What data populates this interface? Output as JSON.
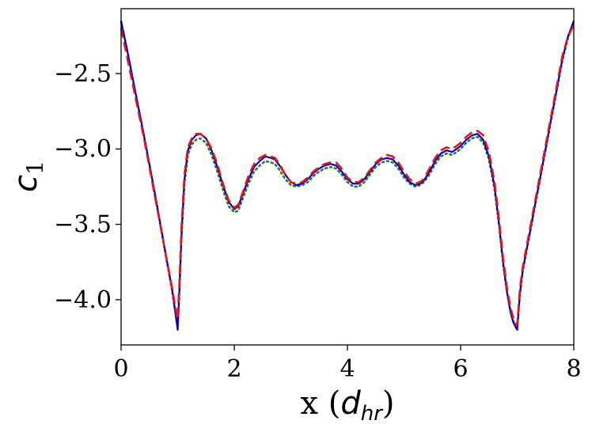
{
  "chart_data": {
    "type": "line",
    "xlabel": {
      "main": "x (",
      "italic": "d",
      "sub": "hr",
      "close": ")"
    },
    "ylabel": {
      "italic": "c",
      "sub": "1"
    },
    "xlim": [
      0,
      8
    ],
    "ylim": [
      -4.3,
      -2.07
    ],
    "xticks": [
      0,
      2,
      4,
      6,
      8
    ],
    "xtick_labels": [
      "0",
      "2",
      "4",
      "6",
      "8"
    ],
    "yticks": [
      -4.0,
      -3.5,
      -3.0,
      -2.5
    ],
    "ytick_labels": [
      "−4.0",
      "−3.5",
      "−3.0",
      "−2.5"
    ],
    "grid": false,
    "series": [
      {
        "color": "#0000cc",
        "style": "solid",
        "x": [
          0,
          0.1,
          0.2,
          0.3,
          0.4,
          0.5,
          0.6,
          0.7,
          0.8,
          0.9,
          0.95,
          1.0,
          1.03,
          1.07,
          1.12,
          1.18,
          1.25,
          1.32,
          1.4,
          1.5,
          1.6,
          1.7,
          1.8,
          1.9,
          2.0,
          2.07,
          2.15,
          2.25,
          2.35,
          2.45,
          2.55,
          2.65,
          2.72,
          2.8,
          2.9,
          3.0,
          3.1,
          3.2,
          3.3,
          3.4,
          3.5,
          3.6,
          3.7,
          3.8,
          3.9,
          4.0,
          4.1,
          4.2,
          4.3,
          4.4,
          4.5,
          4.6,
          4.7,
          4.8,
          4.9,
          5.0,
          5.1,
          5.2,
          5.28,
          5.35,
          5.45,
          5.55,
          5.65,
          5.75,
          5.85,
          5.93,
          6.0,
          6.1,
          6.2,
          6.3,
          6.4,
          6.5,
          6.6,
          6.68,
          6.75,
          6.82,
          6.88,
          6.93,
          6.97,
          7.0,
          7.05,
          7.1,
          7.2,
          7.3,
          7.4,
          7.5,
          7.6,
          7.7,
          7.8,
          7.9,
          8.0
        ],
        "values": [
          -2.15,
          -2.33,
          -2.52,
          -2.71,
          -2.9,
          -3.1,
          -3.3,
          -3.51,
          -3.72,
          -3.93,
          -4.06,
          -4.2,
          -3.95,
          -3.55,
          -3.2,
          -3.01,
          -2.94,
          -2.91,
          -2.9,
          -2.93,
          -3.01,
          -3.12,
          -3.24,
          -3.35,
          -3.4,
          -3.38,
          -3.3,
          -3.2,
          -3.12,
          -3.08,
          -3.05,
          -3.06,
          -3.07,
          -3.11,
          -3.17,
          -3.22,
          -3.24,
          -3.23,
          -3.2,
          -3.16,
          -3.13,
          -3.11,
          -3.1,
          -3.11,
          -3.15,
          -3.2,
          -3.23,
          -3.23,
          -3.2,
          -3.15,
          -3.1,
          -3.07,
          -3.06,
          -3.07,
          -3.11,
          -3.17,
          -3.22,
          -3.24,
          -3.23,
          -3.21,
          -3.15,
          -3.08,
          -3.03,
          -3.01,
          -3.02,
          -3.0,
          -2.98,
          -2.94,
          -2.91,
          -2.9,
          -2.94,
          -3.05,
          -3.25,
          -3.5,
          -3.75,
          -3.95,
          -4.08,
          -4.15,
          -4.18,
          -4.2,
          -3.95,
          -3.8,
          -3.6,
          -3.4,
          -3.2,
          -3.0,
          -2.8,
          -2.6,
          -2.4,
          -2.25,
          -2.15
        ]
      },
      {
        "color": "#2e7d1f",
        "style": "dotted",
        "x": [
          0,
          0.1,
          0.2,
          0.3,
          0.4,
          0.5,
          0.6,
          0.7,
          0.8,
          0.9,
          0.95,
          1.0,
          1.03,
          1.07,
          1.12,
          1.18,
          1.25,
          1.32,
          1.4,
          1.5,
          1.6,
          1.7,
          1.8,
          1.9,
          2.0,
          2.07,
          2.15,
          2.25,
          2.35,
          2.45,
          2.55,
          2.65,
          2.72,
          2.8,
          2.9,
          3.0,
          3.1,
          3.2,
          3.3,
          3.4,
          3.5,
          3.6,
          3.7,
          3.8,
          3.9,
          4.0,
          4.1,
          4.2,
          4.3,
          4.4,
          4.5,
          4.6,
          4.7,
          4.8,
          4.9,
          5.0,
          5.1,
          5.2,
          5.28,
          5.35,
          5.45,
          5.55,
          5.65,
          5.75,
          5.85,
          5.93,
          6.0,
          6.1,
          6.2,
          6.3,
          6.4,
          6.5,
          6.6,
          6.68,
          6.75,
          6.82,
          6.88,
          6.93,
          6.97,
          7.0,
          7.05,
          7.1,
          7.2,
          7.3,
          7.4,
          7.5,
          7.6,
          7.7,
          7.8,
          7.9,
          8.0
        ],
        "values": [
          -2.16,
          -2.34,
          -2.53,
          -2.72,
          -2.91,
          -3.11,
          -3.31,
          -3.52,
          -3.73,
          -3.94,
          -4.06,
          -4.18,
          -3.96,
          -3.57,
          -3.23,
          -3.04,
          -2.97,
          -2.94,
          -2.93,
          -2.96,
          -3.04,
          -3.15,
          -3.27,
          -3.38,
          -3.42,
          -3.41,
          -3.33,
          -3.23,
          -3.15,
          -3.11,
          -3.08,
          -3.09,
          -3.1,
          -3.14,
          -3.2,
          -3.24,
          -3.25,
          -3.24,
          -3.22,
          -3.18,
          -3.15,
          -3.13,
          -3.12,
          -3.13,
          -3.17,
          -3.22,
          -3.25,
          -3.25,
          -3.22,
          -3.17,
          -3.12,
          -3.09,
          -3.08,
          -3.09,
          -3.13,
          -3.19,
          -3.23,
          -3.25,
          -3.24,
          -3.22,
          -3.17,
          -3.1,
          -3.05,
          -3.03,
          -3.04,
          -3.02,
          -3.0,
          -2.96,
          -2.93,
          -2.92,
          -2.96,
          -3.07,
          -3.27,
          -3.51,
          -3.76,
          -3.95,
          -4.07,
          -4.14,
          -4.17,
          -4.18,
          -3.96,
          -3.81,
          -3.61,
          -3.41,
          -3.21,
          -3.01,
          -2.81,
          -2.61,
          -2.41,
          -2.26,
          -2.16
        ]
      },
      {
        "color": "#e8141a",
        "style": "dashed",
        "x": [
          0,
          0.1,
          0.2,
          0.3,
          0.4,
          0.5,
          0.6,
          0.7,
          0.8,
          0.9,
          0.95,
          1.0,
          1.03,
          1.07,
          1.12,
          1.18,
          1.25,
          1.32,
          1.4,
          1.5,
          1.6,
          1.7,
          1.8,
          1.9,
          2.0,
          2.07,
          2.15,
          2.25,
          2.35,
          2.45,
          2.55,
          2.65,
          2.72,
          2.8,
          2.9,
          3.0,
          3.1,
          3.2,
          3.3,
          3.4,
          3.5,
          3.6,
          3.7,
          3.8,
          3.9,
          4.0,
          4.1,
          4.2,
          4.3,
          4.4,
          4.5,
          4.6,
          4.7,
          4.8,
          4.9,
          5.0,
          5.1,
          5.2,
          5.28,
          5.35,
          5.45,
          5.55,
          5.65,
          5.75,
          5.85,
          5.93,
          6.0,
          6.1,
          6.2,
          6.3,
          6.4,
          6.5,
          6.6,
          6.68,
          6.75,
          6.82,
          6.88,
          6.93,
          6.97,
          7.0,
          7.05,
          7.1,
          7.2,
          7.3,
          7.4,
          7.5,
          7.6,
          7.7,
          7.8,
          7.9,
          8.0
        ],
        "values": [
          -2.2,
          -2.38,
          -2.56,
          -2.74,
          -2.92,
          -3.12,
          -3.32,
          -3.52,
          -3.72,
          -3.92,
          -4.03,
          -4.13,
          -3.9,
          -3.5,
          -3.17,
          -2.99,
          -2.93,
          -2.9,
          -2.9,
          -2.93,
          -3.0,
          -3.1,
          -3.23,
          -3.34,
          -3.39,
          -3.37,
          -3.29,
          -3.18,
          -3.1,
          -3.06,
          -3.04,
          -3.05,
          -3.06,
          -3.1,
          -3.17,
          -3.22,
          -3.23,
          -3.22,
          -3.19,
          -3.15,
          -3.12,
          -3.1,
          -3.09,
          -3.09,
          -3.13,
          -3.19,
          -3.22,
          -3.22,
          -3.19,
          -3.14,
          -3.09,
          -3.06,
          -3.04,
          -3.05,
          -3.09,
          -3.15,
          -3.2,
          -3.23,
          -3.22,
          -3.2,
          -3.13,
          -3.06,
          -3.01,
          -2.99,
          -3.0,
          -2.98,
          -2.96,
          -2.92,
          -2.89,
          -2.88,
          -2.91,
          -3.02,
          -3.22,
          -3.47,
          -3.72,
          -3.92,
          -4.05,
          -4.12,
          -4.16,
          -4.17,
          -3.92,
          -3.78,
          -3.58,
          -3.38,
          -3.18,
          -2.98,
          -2.78,
          -2.58,
          -2.38,
          -2.25,
          -2.18
        ]
      }
    ]
  }
}
